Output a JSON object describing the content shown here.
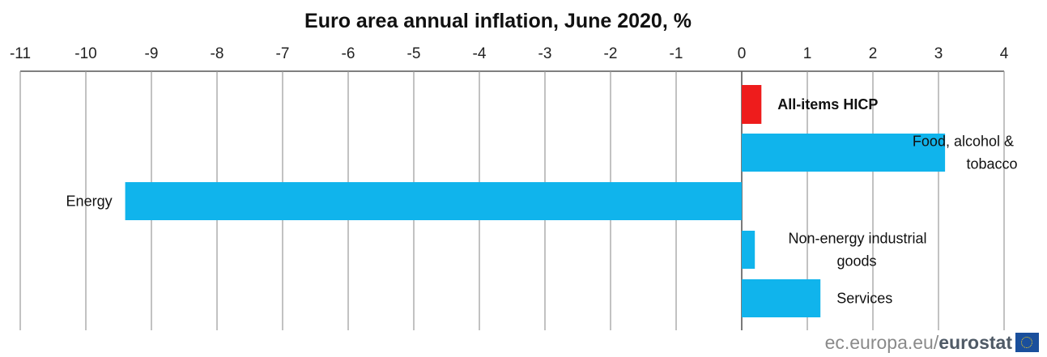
{
  "title": "Euro area annual inflation, June 2020, %",
  "source": {
    "domain": "ec.europa.eu/",
    "brand": "eurostat",
    "logo_icon": "eu-flag-icon"
  },
  "chart_data": {
    "type": "bar",
    "orientation": "horizontal",
    "title": "Euro area annual inflation, June 2020, %",
    "xlabel": "",
    "ylabel": "",
    "xlim": [
      -11,
      4
    ],
    "xticks": [
      -11,
      -10,
      -9,
      -8,
      -7,
      -6,
      -5,
      -4,
      -3,
      -2,
      -1,
      0,
      1,
      2,
      3,
      4
    ],
    "grid": "vertical",
    "axis_position": "top",
    "legend": "none",
    "categories": [
      {
        "lines": [
          "All-items HICP"
        ],
        "bold": true
      },
      {
        "lines": [
          "Food, alcohol &",
          "tobacco"
        ],
        "bold": false
      },
      {
        "lines": [
          "Energy"
        ],
        "bold": false
      },
      {
        "lines": [
          "Non-energy industrial",
          "goods"
        ],
        "bold": false
      },
      {
        "lines": [
          "Services"
        ],
        "bold": false
      }
    ],
    "values": [
      0.3,
      3.1,
      -9.4,
      0.2,
      1.2
    ],
    "colors": [
      "#ee1c1c",
      "#10b4ec",
      "#10b4ec",
      "#10b4ec",
      "#10b4ec"
    ],
    "gridline_color": "#9a9a9a"
  }
}
